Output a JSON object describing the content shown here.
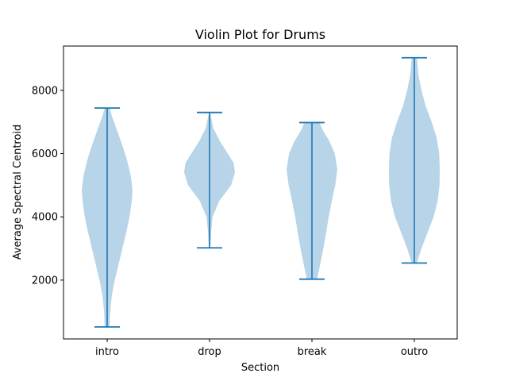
{
  "chart_data": {
    "type": "violin",
    "title": "Violin Plot for Drums",
    "xlabel": "Section",
    "ylabel": "Average Spectral Centroid",
    "categories": [
      "intro",
      "drop",
      "break",
      "outro"
    ],
    "yticks": [
      2000,
      4000,
      6000,
      8000
    ],
    "ylim": [
      140,
      9400
    ],
    "grid": false,
    "colors": {
      "body": "#b8d4e8",
      "line": "#1f77b4"
    },
    "series": [
      {
        "category": "intro",
        "min": 520,
        "max": 7440,
        "density": [
          [
            520,
            0.1
          ],
          [
            1000,
            0.12
          ],
          [
            1500,
            0.18
          ],
          [
            2000,
            0.3
          ],
          [
            2500,
            0.45
          ],
          [
            3000,
            0.6
          ],
          [
            3500,
            0.75
          ],
          [
            4000,
            0.88
          ],
          [
            4500,
            0.97
          ],
          [
            4850,
            1.0
          ],
          [
            5300,
            0.93
          ],
          [
            5800,
            0.78
          ],
          [
            6300,
            0.58
          ],
          [
            6800,
            0.36
          ],
          [
            7200,
            0.18
          ],
          [
            7440,
            0.1
          ]
        ]
      },
      {
        "category": "drop",
        "min": 3020,
        "max": 7300,
        "density": [
          [
            3020,
            0.03
          ],
          [
            3500,
            0.06
          ],
          [
            4000,
            0.12
          ],
          [
            4500,
            0.38
          ],
          [
            5000,
            0.85
          ],
          [
            5400,
            1.0
          ],
          [
            5700,
            0.95
          ],
          [
            6000,
            0.72
          ],
          [
            6400,
            0.4
          ],
          [
            6800,
            0.15
          ],
          [
            7300,
            0.02
          ]
        ]
      },
      {
        "category": "break",
        "min": 2030,
        "max": 6980,
        "density": [
          [
            2030,
            0.2
          ],
          [
            2400,
            0.3
          ],
          [
            3000,
            0.45
          ],
          [
            3500,
            0.56
          ],
          [
            4000,
            0.66
          ],
          [
            4500,
            0.78
          ],
          [
            5000,
            0.92
          ],
          [
            5500,
            1.0
          ],
          [
            6000,
            0.9
          ],
          [
            6400,
            0.68
          ],
          [
            6750,
            0.42
          ],
          [
            6980,
            0.3
          ]
        ]
      },
      {
        "category": "outro",
        "min": 2540,
        "max": 9030,
        "density": [
          [
            2540,
            0.1
          ],
          [
            3000,
            0.28
          ],
          [
            3500,
            0.52
          ],
          [
            4000,
            0.76
          ],
          [
            4500,
            0.92
          ],
          [
            5000,
            0.99
          ],
          [
            5500,
            1.0
          ],
          [
            6000,
            0.98
          ],
          [
            6500,
            0.88
          ],
          [
            7000,
            0.68
          ],
          [
            7500,
            0.45
          ],
          [
            8000,
            0.28
          ],
          [
            8500,
            0.16
          ],
          [
            9030,
            0.1
          ]
        ]
      }
    ]
  }
}
